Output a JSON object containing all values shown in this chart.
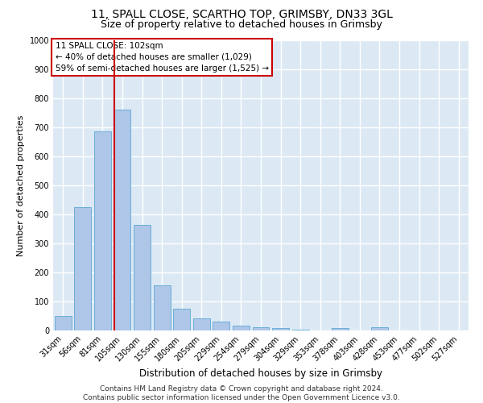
{
  "title1": "11, SPALL CLOSE, SCARTHO TOP, GRIMSBY, DN33 3GL",
  "title2": "Size of property relative to detached houses in Grimsby",
  "xlabel": "Distribution of detached houses by size in Grimsby",
  "ylabel": "Number of detached properties",
  "footnote": "Contains HM Land Registry data © Crown copyright and database right 2024.\nContains public sector information licensed under the Open Government Licence v3.0.",
  "bar_labels": [
    "31sqm",
    "56sqm",
    "81sqm",
    "105sqm",
    "130sqm",
    "155sqm",
    "180sqm",
    "205sqm",
    "229sqm",
    "254sqm",
    "279sqm",
    "304sqm",
    "329sqm",
    "353sqm",
    "378sqm",
    "403sqm",
    "428sqm",
    "453sqm",
    "477sqm",
    "502sqm",
    "527sqm"
  ],
  "bar_values": [
    50,
    425,
    685,
    760,
    365,
    155,
    75,
    42,
    30,
    18,
    12,
    8,
    3,
    0,
    8,
    0,
    10,
    0,
    0,
    0,
    0
  ],
  "bar_color": "#aec6e8",
  "bar_edge_color": "#6aaed6",
  "background_color": "#dce9f5",
  "annotation_title": "11 SPALL CLOSE: 102sqm",
  "annotation_line1": "← 40% of detached houses are smaller (1,029)",
  "annotation_line2": "59% of semi-detached houses are larger (1,525) →",
  "annotation_box_color": "#ffffff",
  "annotation_box_edge": "#cc0000",
  "vline_color": "#cc0000",
  "vline_x_index": 3,
  "ylim": [
    0,
    1000
  ],
  "yticks": [
    0,
    100,
    200,
    300,
    400,
    500,
    600,
    700,
    800,
    900,
    1000
  ],
  "grid_color": "#ffffff",
  "title1_fontsize": 10,
  "title2_fontsize": 9,
  "xlabel_fontsize": 8.5,
  "ylabel_fontsize": 8,
  "tick_fontsize": 7,
  "footnote_fontsize": 6.5,
  "annotation_fontsize": 7.5
}
